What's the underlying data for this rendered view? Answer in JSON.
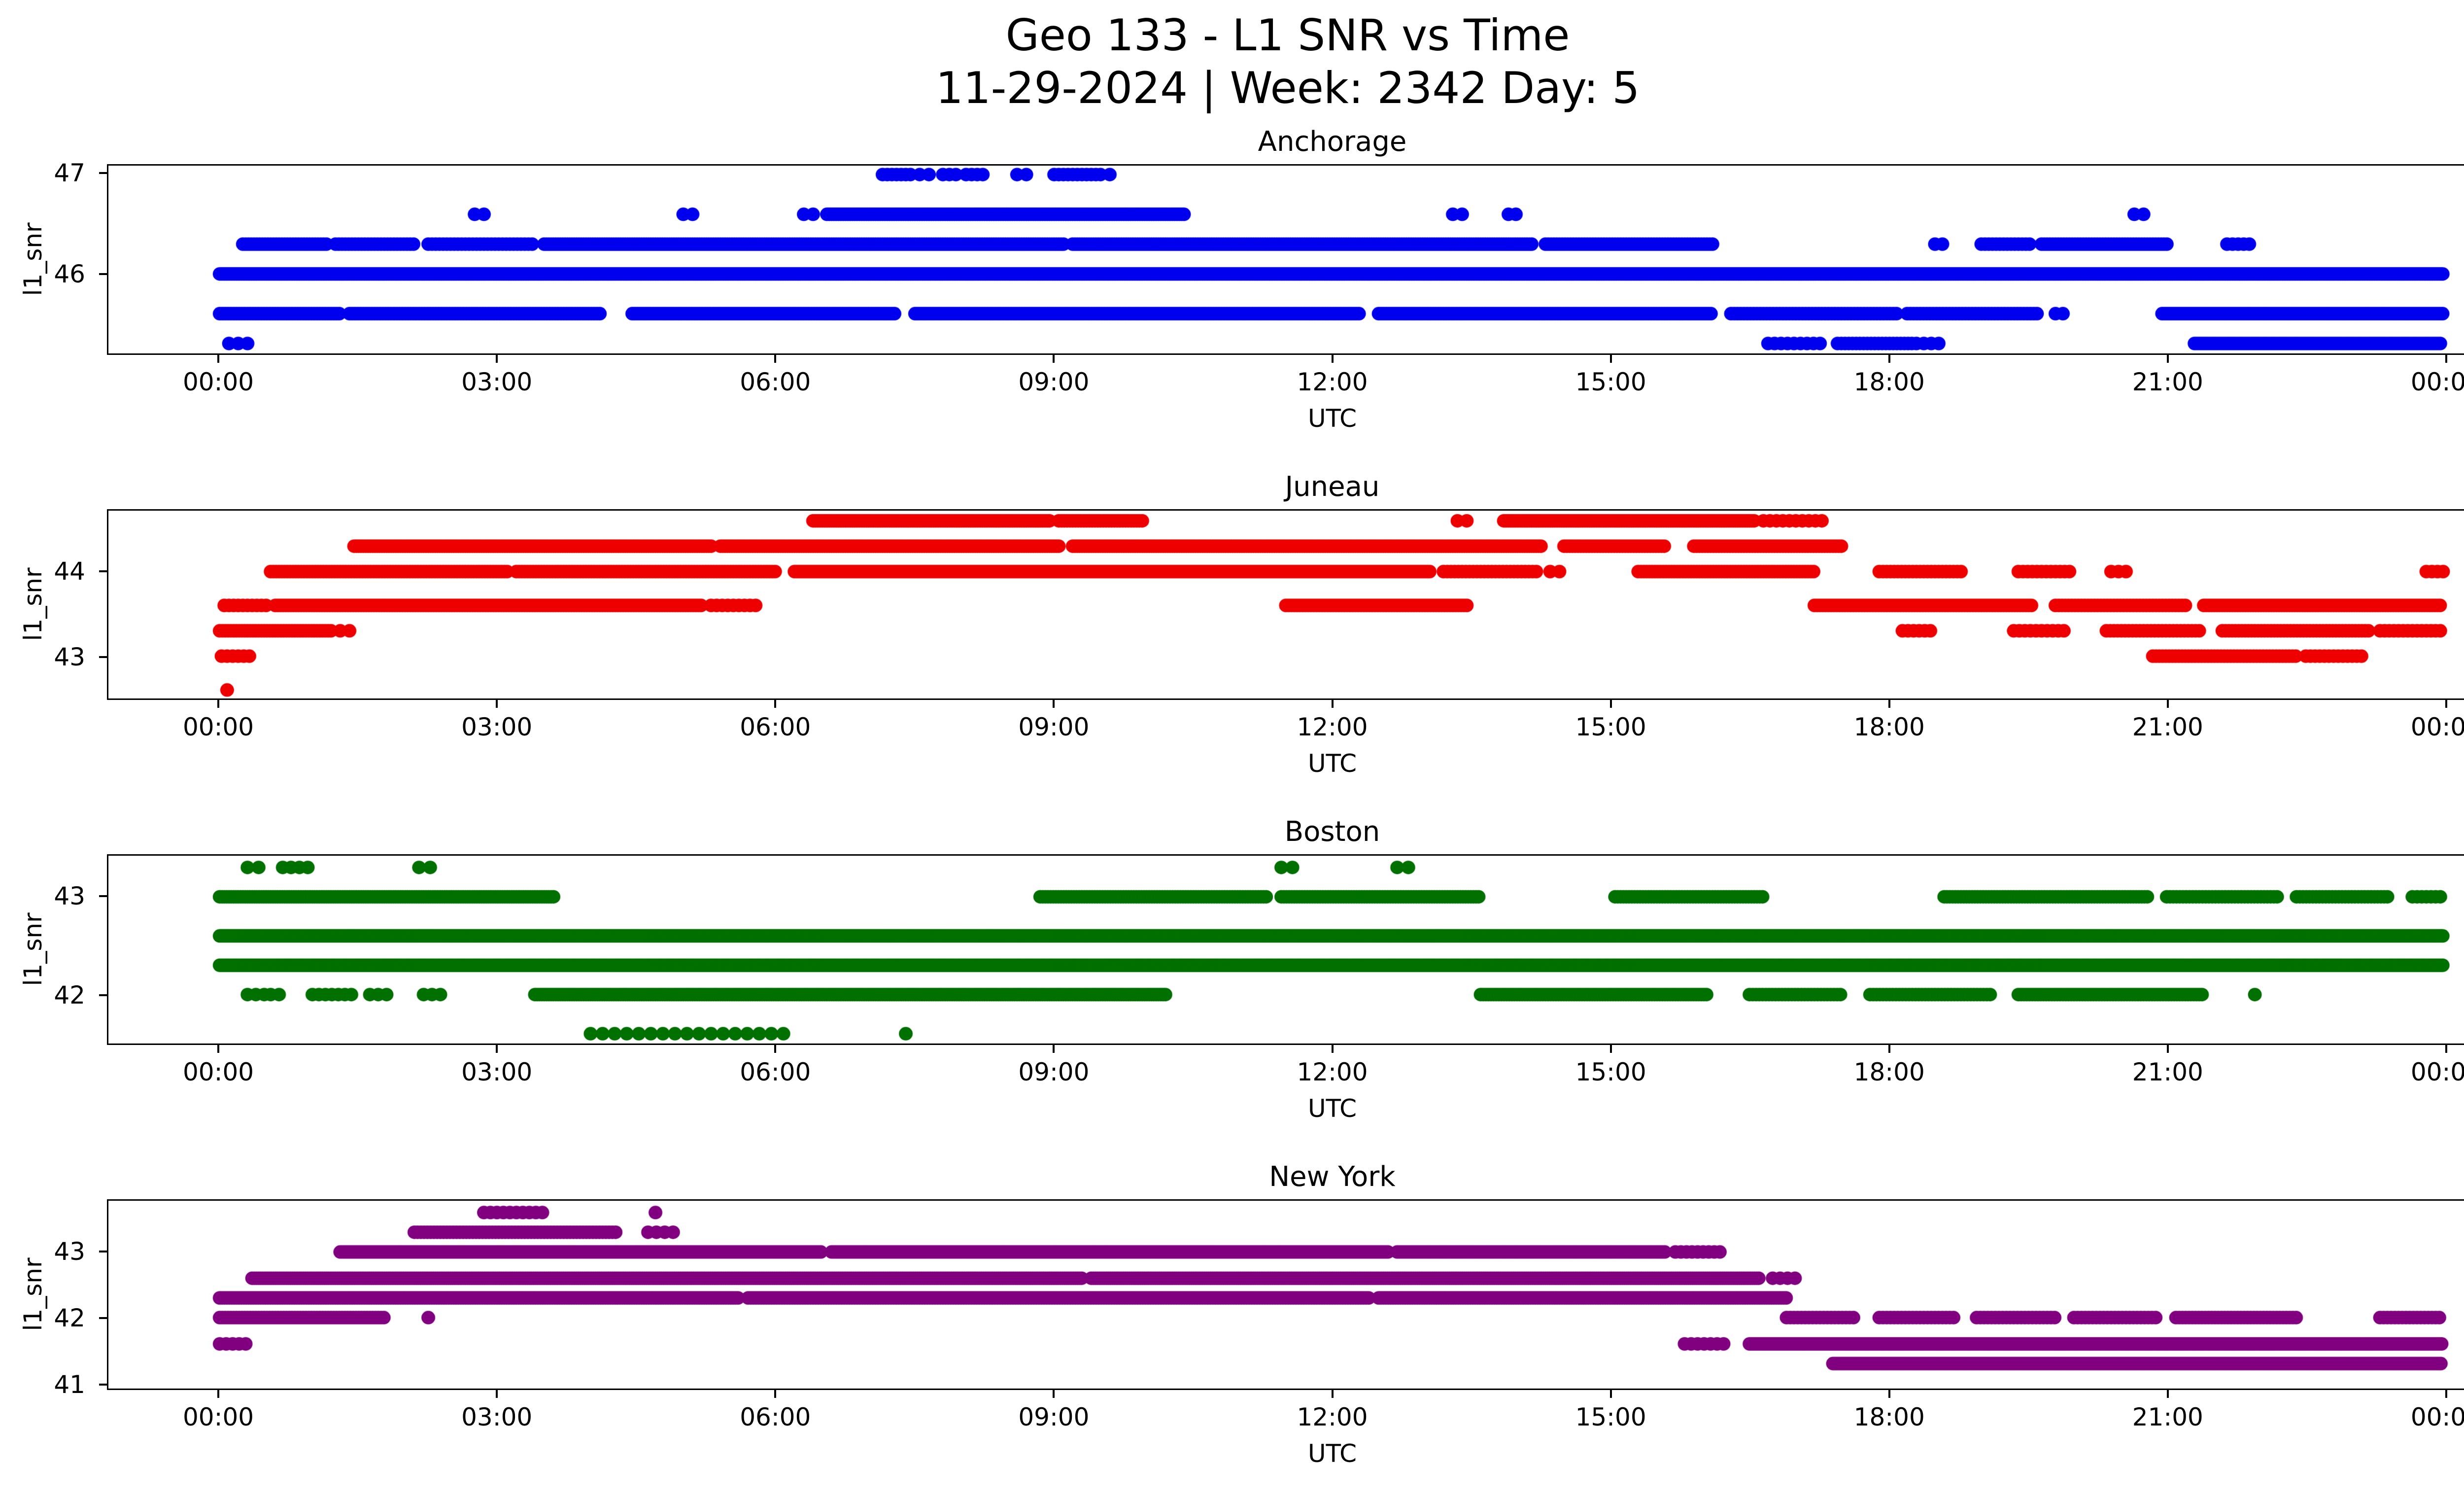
{
  "figure": {
    "title_line1": "Geo 133 - L1 SNR vs Time",
    "title_line2": "11-29-2024 | Week: 2342 Day: 5"
  },
  "chart_data": {
    "type": "scatter",
    "title": "Geo 133 - L1 SNR vs Time",
    "subtitle": "11-29-2024 | Week: 2342 Day: 5",
    "xlabel": "UTC",
    "ylabel": "l1_snr",
    "x_range_hours": [
      0,
      24
    ],
    "x_axis_padding_hours": 1.2,
    "xtick_hours": [
      0,
      3,
      6,
      9,
      12,
      15,
      18,
      21,
      24
    ],
    "xtick_labels": [
      "00:00",
      "03:00",
      "06:00",
      "09:00",
      "12:00",
      "15:00",
      "18:00",
      "21:00",
      "00:00"
    ],
    "marker_radius_px": 14,
    "subplots": [
      {
        "title": "Anchorage",
        "color": "#0000ee",
        "ylim": [
          45.2,
          47.09
        ],
        "yticks": [
          46,
          47
        ],
        "snr_levels": [
          {
            "snr": 47.0,
            "intervals": [
              [
                7.15,
                7.45,
                0.05
              ],
              [
                7.55,
                7.65,
                0.1
              ],
              [
                7.8,
                7.95,
                0.07
              ],
              [
                8.05,
                8.25,
                0.06
              ],
              [
                8.6,
                8.7,
                0.1
              ],
              [
                9.0,
                9.45,
                0.05
              ],
              [
                9.5,
                9.6,
                0.1
              ]
            ]
          },
          {
            "snr": 46.6,
            "intervals": [
              [
                2.75,
                2.85,
                0.1
              ],
              [
                5.0,
                5.1,
                0.1
              ],
              [
                6.3,
                6.4,
                0.1
              ],
              [
                6.55,
                10.4,
                0.025
              ],
              [
                13.3,
                13.4,
                0.1
              ],
              [
                13.9,
                14.05,
                0.08
              ],
              [
                20.65,
                20.75,
                0.1
              ]
            ]
          },
          {
            "snr": 46.3,
            "intervals": [
              [
                0.25,
                1.15,
                0.03
              ],
              [
                1.25,
                2.1,
                0.035
              ],
              [
                2.25,
                3.4,
                0.04
              ],
              [
                3.5,
                9.1,
                0.025
              ],
              [
                9.2,
                14.15,
                0.025
              ],
              [
                14.3,
                16.1,
                0.03
              ],
              [
                18.5,
                18.65,
                0.08
              ],
              [
                19.0,
                19.55,
                0.04
              ],
              [
                19.65,
                21.0,
                0.03
              ],
              [
                21.65,
                21.9,
                0.06
              ]
            ]
          },
          {
            "snr": 46.0,
            "intervals": [
              [
                0.0,
                23.98,
                0.018
              ]
            ]
          },
          {
            "snr": 45.6,
            "intervals": [
              [
                0.0,
                1.3,
                0.03
              ],
              [
                1.4,
                4.1,
                0.03
              ],
              [
                4.45,
                7.3,
                0.028
              ],
              [
                7.5,
                12.3,
                0.028
              ],
              [
                12.5,
                16.1,
                0.028
              ],
              [
                16.3,
                18.1,
                0.035
              ],
              [
                18.2,
                19.6,
                0.035
              ],
              [
                19.8,
                19.95,
                0.08
              ],
              [
                20.95,
                23.98,
                0.025
              ]
            ]
          },
          {
            "snr": 45.3,
            "intervals": [
              [
                0.1,
                0.35,
                0.1
              ],
              [
                16.7,
                17.3,
                0.07
              ],
              [
                17.45,
                18.25,
                0.04
              ],
              [
                18.3,
                18.55,
                0.08
              ],
              [
                21.3,
                23.95,
                0.025
              ]
            ]
          }
        ]
      },
      {
        "title": "Juneau",
        "color": "#ee0000",
        "ylim": [
          42.5,
          44.72
        ],
        "yticks": [
          43,
          44
        ],
        "snr_levels": [
          {
            "snr": 44.6,
            "intervals": [
              [
                6.4,
                8.95,
                0.025
              ],
              [
                9.05,
                9.95,
                0.03
              ],
              [
                13.35,
                13.45,
                0.1
              ],
              [
                13.85,
                16.55,
                0.025
              ],
              [
                16.65,
                17.3,
                0.07
              ]
            ]
          },
          {
            "snr": 44.3,
            "intervals": [
              [
                1.45,
                5.3,
                0.025
              ],
              [
                5.4,
                9.05,
                0.025
              ],
              [
                9.2,
                14.25,
                0.025
              ],
              [
                14.5,
                15.6,
                0.03
              ],
              [
                15.9,
                17.5,
                0.03
              ]
            ]
          },
          {
            "snr": 44.0,
            "intervals": [
              [
                0.55,
                3.1,
                0.03
              ],
              [
                3.2,
                6.0,
                0.03
              ],
              [
                6.2,
                13.05,
                0.025
              ],
              [
                13.2,
                14.2,
                0.04
              ],
              [
                14.35,
                14.45,
                0.1
              ],
              [
                15.3,
                17.2,
                0.03
              ],
              [
                17.9,
                18.8,
                0.04
              ],
              [
                19.4,
                19.95,
                0.05
              ],
              [
                20.4,
                20.6,
                0.08
              ],
              [
                23.8,
                23.98,
                0.06
              ]
            ]
          },
          {
            "snr": 43.6,
            "intervals": [
              [
                0.05,
                0.5,
                0.05
              ],
              [
                0.6,
                5.2,
                0.028
              ],
              [
                5.3,
                5.8,
                0.06
              ],
              [
                11.5,
                13.45,
                0.03
              ],
              [
                17.2,
                19.55,
                0.03
              ],
              [
                19.8,
                21.2,
                0.035
              ],
              [
                21.4,
                23.95,
                0.028
              ]
            ]
          },
          {
            "snr": 43.3,
            "intervals": [
              [
                0.0,
                1.2,
                0.03
              ],
              [
                1.3,
                1.4,
                0.1
              ],
              [
                18.15,
                18.5,
                0.06
              ],
              [
                19.35,
                19.9,
                0.06
              ],
              [
                20.35,
                21.35,
                0.04
              ],
              [
                21.6,
                23.2,
                0.035
              ],
              [
                23.3,
                23.95,
                0.05
              ]
            ]
          },
          {
            "snr": 43.0,
            "intervals": [
              [
                0.02,
                0.35,
                0.06
              ],
              [
                20.85,
                22.4,
                0.035
              ],
              [
                22.5,
                23.1,
                0.05
              ]
            ]
          },
          {
            "snr": 42.6,
            "intervals": [
              [
                0.08,
                0.12,
                0.2
              ]
            ]
          }
        ]
      },
      {
        "title": "Boston",
        "color": "#007000",
        "ylim": [
          41.5,
          43.42
        ],
        "yticks": [
          42,
          43
        ],
        "snr_levels": [
          {
            "snr": 43.3,
            "intervals": [
              [
                0.3,
                0.42,
                0.12
              ],
              [
                0.68,
                0.95,
                0.09
              ],
              [
                2.15,
                2.28,
                0.12
              ],
              [
                11.45,
                11.58,
                0.12
              ],
              [
                12.7,
                12.82,
                0.12
              ]
            ]
          },
          {
            "snr": 43.0,
            "intervals": [
              [
                0.0,
                3.6,
                0.025
              ],
              [
                8.85,
                11.3,
                0.028
              ],
              [
                11.45,
                13.6,
                0.028
              ],
              [
                15.05,
                16.65,
                0.03
              ],
              [
                18.6,
                20.8,
                0.03
              ],
              [
                21.0,
                22.2,
                0.035
              ],
              [
                22.4,
                23.4,
                0.035
              ],
              [
                23.65,
                23.98,
                0.05
              ]
            ]
          },
          {
            "snr": 42.6,
            "intervals": [
              [
                0.0,
                23.98,
                0.018
              ]
            ]
          },
          {
            "snr": 42.3,
            "intervals": [
              [
                0.0,
                23.98,
                0.018
              ]
            ]
          },
          {
            "snr": 42.0,
            "intervals": [
              [
                0.3,
                0.48,
                0.09
              ],
              [
                0.55,
                0.72,
                0.09
              ],
              [
                1.0,
                1.42,
                0.07
              ],
              [
                1.62,
                1.82,
                0.09
              ],
              [
                2.2,
                2.42,
                0.09
              ],
              [
                3.4,
                10.2,
                0.025
              ],
              [
                13.6,
                16.05,
                0.028
              ],
              [
                16.5,
                17.5,
                0.035
              ],
              [
                17.8,
                19.1,
                0.035
              ],
              [
                19.4,
                21.4,
                0.03
              ],
              [
                21.95,
                22.05,
                0.12
              ]
            ]
          },
          {
            "snr": 41.6,
            "intervals": [
              [
                4.0,
                6.1,
                0.13
              ],
              [
                7.4,
                7.5,
                0.15
              ]
            ]
          }
        ]
      },
      {
        "title": "New York",
        "color": "#800080",
        "ylim": [
          40.92,
          43.78
        ],
        "yticks": [
          41,
          42,
          43
        ],
        "snr_levels": [
          {
            "snr": 43.6,
            "intervals": [
              [
                2.85,
                3.5,
                0.07
              ],
              [
                4.7,
                4.8,
                0.12
              ]
            ]
          },
          {
            "snr": 43.3,
            "intervals": [
              [
                2.1,
                4.3,
                0.035
              ],
              [
                4.62,
                4.9,
                0.09
              ]
            ]
          },
          {
            "snr": 43.0,
            "intervals": [
              [
                1.3,
                6.5,
                0.024
              ],
              [
                6.6,
                12.6,
                0.024
              ],
              [
                12.7,
                15.6,
                0.026
              ],
              [
                15.7,
                16.2,
                0.06
              ]
            ]
          },
          {
            "snr": 42.6,
            "intervals": [
              [
                0.35,
                9.3,
                0.023
              ],
              [
                9.4,
                16.6,
                0.023
              ],
              [
                16.75,
                17.05,
                0.08
              ]
            ]
          },
          {
            "snr": 42.3,
            "intervals": [
              [
                0.0,
                5.6,
                0.026
              ],
              [
                5.7,
                12.4,
                0.028
              ],
              [
                12.5,
                16.9,
                0.026
              ]
            ]
          },
          {
            "snr": 42.0,
            "intervals": [
              [
                0.0,
                1.78,
                0.03
              ],
              [
                2.25,
                2.35,
                0.12
              ],
              [
                16.9,
                17.62,
                0.04
              ],
              [
                17.9,
                18.7,
                0.04
              ],
              [
                18.95,
                19.8,
                0.04
              ],
              [
                20.0,
                20.9,
                0.04
              ],
              [
                21.1,
                22.4,
                0.035
              ],
              [
                23.3,
                23.97,
                0.04
              ]
            ]
          },
          {
            "snr": 41.6,
            "intervals": [
              [
                0.0,
                0.32,
                0.07
              ],
              [
                15.8,
                16.25,
                0.07
              ],
              [
                16.5,
                23.97,
                0.024
              ]
            ]
          },
          {
            "snr": 41.3,
            "intervals": [
              [
                17.4,
                23.97,
                0.022
              ]
            ]
          }
        ]
      }
    ]
  }
}
